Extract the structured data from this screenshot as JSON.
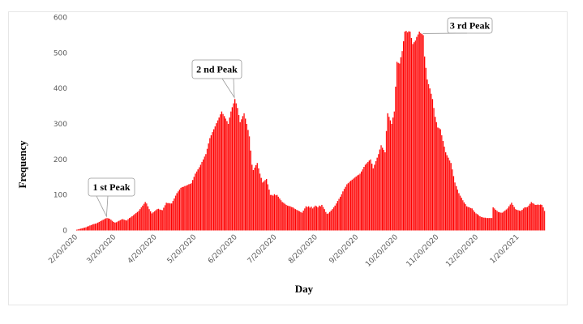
{
  "chart_data": {
    "type": "bar",
    "title": "",
    "xlabel": "Day",
    "ylabel": "Frequency",
    "ylim": [
      0,
      600
    ],
    "yticks": [
      0,
      100,
      200,
      300,
      400,
      500,
      600
    ],
    "grid": false,
    "start_date": "2/20/2020",
    "x_ticks": [
      {
        "label": "2/20/2020",
        "day": 0
      },
      {
        "label": "3/20/2020",
        "day": 29
      },
      {
        "label": "4/20/2020",
        "day": 60
      },
      {
        "label": "5/20/2020",
        "day": 90
      },
      {
        "label": "6/20/2020",
        "day": 121
      },
      {
        "label": "7/20/2020",
        "day": 151
      },
      {
        "label": "8/20/2020",
        "day": 182
      },
      {
        "label": "9/20/2020",
        "day": 213
      },
      {
        "label": "10/20/2020",
        "day": 243
      },
      {
        "label": "11/20/2020",
        "day": 274
      },
      {
        "label": "12/20/2020",
        "day": 304
      },
      {
        "label": "1/20/2021",
        "day": 335
      }
    ],
    "annotations": [
      {
        "text": "1 st Peak",
        "day": 23,
        "value": 35
      },
      {
        "text": "2 nd Peak",
        "day": 120,
        "value": 370
      },
      {
        "text": "3 rd Peak",
        "day": 263,
        "value": 550
      }
    ],
    "bar_color": "#ff0000",
    "values": [
      2,
      3,
      4,
      5,
      6,
      7,
      8,
      9,
      11,
      12,
      14,
      15,
      17,
      18,
      19,
      20,
      22,
      24,
      26,
      28,
      30,
      32,
      34,
      35,
      34,
      33,
      30,
      27,
      24,
      22,
      23,
      25,
      27,
      29,
      31,
      32,
      30,
      29,
      28,
      32,
      35,
      37,
      40,
      43,
      46,
      49,
      52,
      55,
      60,
      65,
      70,
      75,
      80,
      76,
      68,
      60,
      54,
      48,
      51,
      54,
      57,
      60,
      61,
      59,
      58,
      57,
      64,
      71,
      78,
      77,
      77,
      76,
      76,
      83,
      90,
      98,
      105,
      110,
      115,
      120,
      122,
      123,
      125,
      126,
      128,
      130,
      131,
      133,
      142,
      151,
      160,
      166,
      172,
      178,
      185,
      193,
      200,
      208,
      215,
      230,
      245,
      260,
      268,
      277,
      285,
      293,
      302,
      310,
      318,
      327,
      335,
      328,
      322,
      315,
      308,
      300,
      318,
      335,
      347,
      358,
      370,
      358,
      345,
      325,
      305,
      313,
      322,
      330,
      315,
      300,
      283,
      265,
      225,
      185,
      170,
      177,
      184,
      190,
      175,
      160,
      148,
      135,
      138,
      142,
      145,
      130,
      115,
      100,
      100,
      98,
      102,
      99,
      100,
      95,
      90,
      85,
      80,
      78,
      75,
      72,
      70,
      69,
      68,
      66,
      65,
      62,
      60,
      58,
      56,
      54,
      52,
      50,
      56,
      62,
      68,
      66,
      68,
      64,
      67,
      62,
      66,
      70,
      68,
      65,
      70,
      68,
      72,
      66,
      60,
      52,
      47,
      48,
      52,
      56,
      60,
      65,
      70,
      76,
      83,
      89,
      95,
      102,
      110,
      117,
      123,
      130,
      133,
      137,
      140,
      143,
      146,
      149,
      152,
      155,
      157,
      160,
      166,
      172,
      179,
      185,
      189,
      193,
      197,
      200,
      188,
      175,
      185,
      195,
      205,
      215,
      228,
      240,
      233,
      227,
      220,
      280,
      330,
      320,
      310,
      300,
      318,
      335,
      405,
      475,
      472,
      470,
      488,
      505,
      533,
      560,
      562,
      558,
      561,
      560,
      542,
      525,
      530,
      535,
      545,
      552,
      560,
      556,
      553,
      550,
      490,
      458,
      425,
      412,
      400,
      385,
      370,
      345,
      320,
      305,
      290,
      288,
      285,
      268,
      252,
      236,
      220,
      212,
      205,
      197,
      190,
      172,
      153,
      135,
      125,
      115,
      105,
      98,
      92,
      85,
      79,
      74,
      68,
      66,
      65,
      63,
      62,
      57,
      52,
      48,
      46,
      43,
      40,
      38,
      37,
      36,
      36,
      35,
      35,
      35,
      35,
      35,
      65,
      62,
      58,
      55,
      52,
      51,
      50,
      50,
      53,
      56,
      59,
      62,
      68,
      73,
      78,
      72,
      66,
      60,
      58,
      57,
      56,
      55,
      58,
      62,
      65,
      65,
      66,
      70,
      75,
      80,
      77,
      75,
      72,
      72,
      73,
      72,
      73,
      72,
      65,
      55
    ]
  }
}
